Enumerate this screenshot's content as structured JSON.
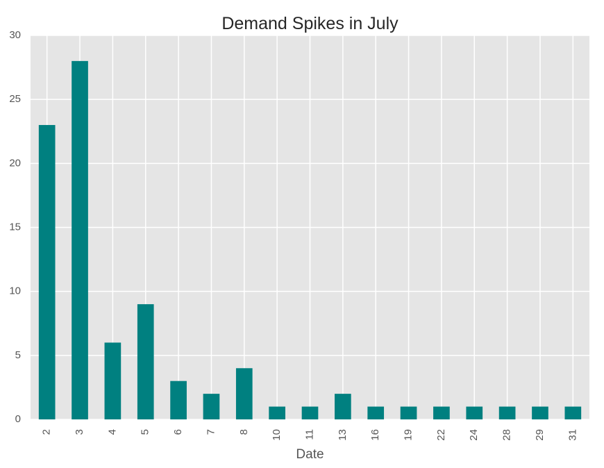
{
  "chart_data": {
    "type": "bar",
    "title": "Demand Spikes in July",
    "xlabel": "Date",
    "ylabel": "",
    "categories": [
      "2",
      "3",
      "4",
      "5",
      "6",
      "7",
      "8",
      "10",
      "11",
      "13",
      "16",
      "19",
      "22",
      "24",
      "28",
      "29",
      "31"
    ],
    "values": [
      23,
      28,
      6,
      9,
      3,
      2,
      4,
      1,
      1,
      2,
      1,
      1,
      1,
      1,
      1,
      1,
      1
    ],
    "ylim": [
      0,
      30
    ],
    "yticks": [
      0,
      5,
      10,
      15,
      20,
      25,
      30
    ],
    "grid": true,
    "legend": "none",
    "x_tick_rotation": "vertical",
    "colors": {
      "bar": "#008080",
      "plot_background": "#e5e5e5",
      "grid": "#ffffff",
      "tick_text": "#555555",
      "title_text": "#262626"
    }
  }
}
